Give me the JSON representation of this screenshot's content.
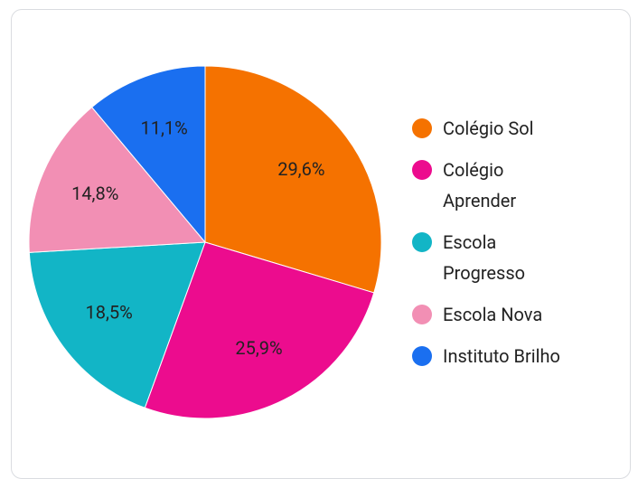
{
  "chart_data": {
    "type": "pie",
    "categories": [
      "Colégio Sol",
      "Colégio Aprender",
      "Escola Progresso",
      "Escola Nova",
      "Instituto Brilho"
    ],
    "values": [
      29.6,
      25.9,
      18.5,
      14.8,
      11.1
    ],
    "value_labels": [
      "29,6%",
      "25,9%",
      "18,5%",
      "14,8%",
      "11,1%"
    ],
    "colors": [
      "#f57200",
      "#ec0c8e",
      "#12b5c6",
      "#f28fb4",
      "#1a6ff0"
    ],
    "legend": "right"
  }
}
